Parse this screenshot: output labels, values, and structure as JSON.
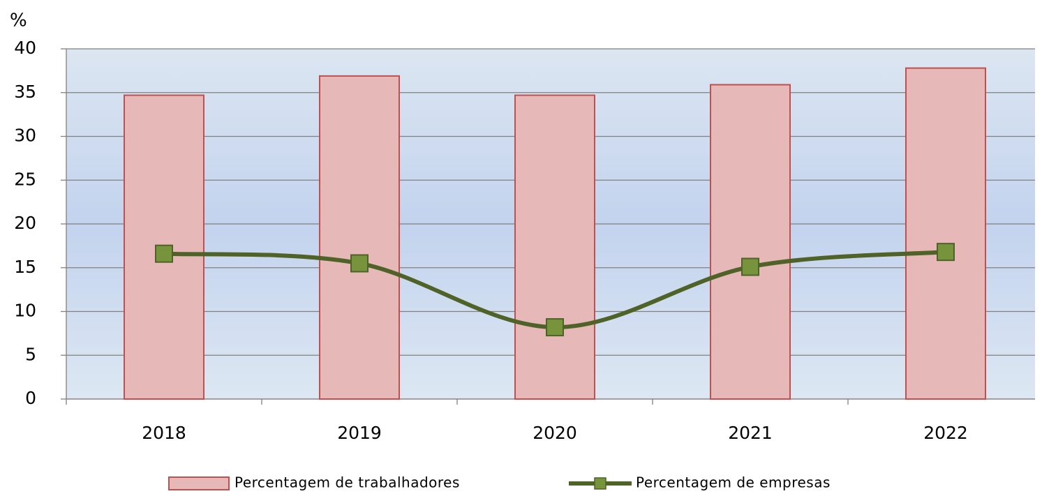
{
  "chart_data": {
    "type": "bar-line",
    "y_axis_label": "%",
    "categories": [
      "2018",
      "2019",
      "2020",
      "2021",
      "2022"
    ],
    "series": [
      {
        "name": "Percentagem de trabalhadores",
        "type": "bar",
        "color": "#e6b8b7",
        "edge_color": "#c0504d",
        "values": [
          34.7,
          36.9,
          34.7,
          35.9,
          37.8
        ]
      },
      {
        "name": "Percentagem de empresas",
        "type": "line",
        "color": "#4f6228",
        "marker_color": "#77933c",
        "values": [
          16.6,
          15.5,
          8.2,
          15.1,
          16.8
        ]
      }
    ],
    "ylim": [
      0,
      40
    ],
    "yticks": [
      0,
      5,
      10,
      15,
      20,
      25,
      30,
      35,
      40
    ],
    "grid": true,
    "legend": "bottom"
  }
}
